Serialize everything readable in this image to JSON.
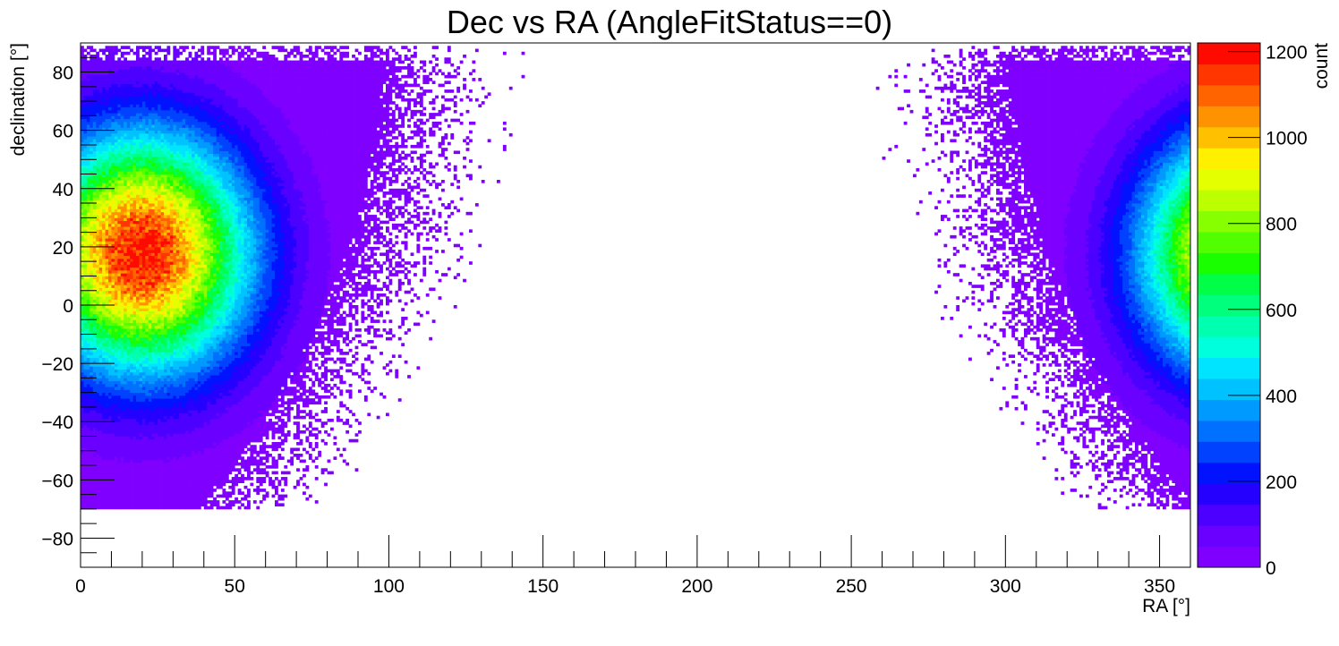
{
  "chart_data": {
    "type": "heatmap",
    "title": "Dec vs RA (AngleFitStatus==0)",
    "xlabel": "RA [°]",
    "ylabel": "declination [°]",
    "zlabel": "count",
    "xlim": [
      0,
      360
    ],
    "ylim": [
      -90,
      90
    ],
    "zlim": [
      0,
      1220
    ],
    "x_ticks": [
      "0",
      "50",
      "100",
      "150",
      "200",
      "250",
      "300",
      "350"
    ],
    "y_ticks": [
      "−80",
      "−60",
      "−40",
      "−20",
      "0",
      "20",
      "40",
      "60",
      "80"
    ],
    "z_ticks": [
      "0",
      "200",
      "400",
      "600",
      "800",
      "1000",
      "1200"
    ],
    "x_tick_values": [
      0,
      50,
      100,
      150,
      200,
      250,
      300,
      350
    ],
    "y_tick_values": [
      -80,
      -60,
      -40,
      -20,
      0,
      20,
      40,
      60,
      80
    ],
    "z_tick_values": [
      0,
      200,
      400,
      600,
      800,
      1000,
      1200
    ],
    "grid": false,
    "colorbar": "right",
    "bins": {
      "ra": 360,
      "dec": 180
    },
    "peak": {
      "ra": 20,
      "dec": 18,
      "count": 1200
    },
    "colormap": [
      "#7f00ff",
      "#6a00ff",
      "#4c00ff",
      "#2600ff",
      "#0012ff",
      "#0042ff",
      "#0070ff",
      "#009aff",
      "#00c2ff",
      "#00e4ff",
      "#00ffdd",
      "#00ffae",
      "#00ff7c",
      "#00ff46",
      "#1aff00",
      "#52ff00",
      "#88ff00",
      "#bcff00",
      "#e4ff00",
      "#fff000",
      "#ffc000",
      "#ff9200",
      "#ff6400",
      "#ff3600",
      "#ff0a00"
    ]
  }
}
